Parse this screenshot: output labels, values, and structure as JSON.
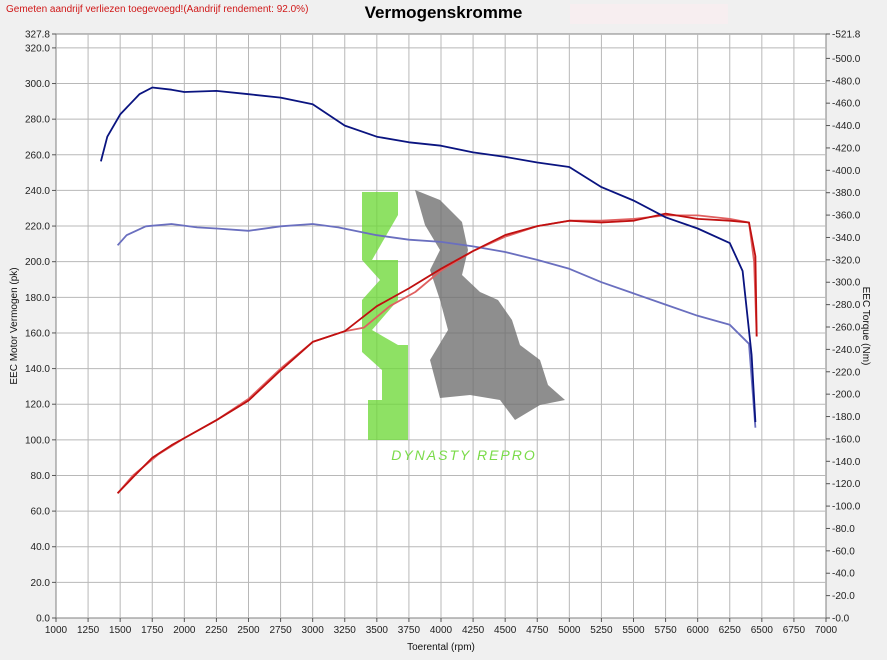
{
  "header": {
    "note": "Gemeten aandrijf verliezen toegevoegd!(Aandrijf rendement: 92.0%)",
    "title": "Vermogenskromme"
  },
  "watermark": {
    "text": "DYNASTY REPRO",
    "logo": "DR",
    "color_green": "#6fd83a",
    "color_gray": "#6e6e6e"
  },
  "colors": {
    "power_stock": "#e06060",
    "torque_stock": "#6a6fbf",
    "power_tuned": "#c01010",
    "torque_tuned": "#0a1480",
    "grid": "#b8b8b8"
  },
  "chart_data": {
    "type": "line",
    "title": "Vermogenskromme",
    "xlabel": "Toerental (rpm)",
    "ylabel_left": "EEC Motor Vermogen (pk)",
    "ylabel_right": "EEC Torque (Nm)",
    "xlim": [
      1000,
      7000
    ],
    "ylim_left": [
      0,
      327.8
    ],
    "ylim_right": [
      0,
      521.8
    ],
    "x_ticks": [
      "1000",
      "1250",
      "1500",
      "1750",
      "2000",
      "2250",
      "2500",
      "2750",
      "3000",
      "3250",
      "3500",
      "3750",
      "4000",
      "4250",
      "4500",
      "4750",
      "5000",
      "5250",
      "5500",
      "5750",
      "6000",
      "6250",
      "6500",
      "6750",
      "7000"
    ],
    "y_left_ticks": [
      "0.0",
      "20.0",
      "40.0",
      "60.0",
      "80.0",
      "100.0",
      "120.0",
      "140.0",
      "160.0",
      "180.0",
      "200.0",
      "220.0",
      "240.0",
      "260.0",
      "280.0",
      "300.0",
      "320.0",
      "327.8"
    ],
    "y_right_ticks": [
      "0.0",
      "20.0",
      "40.0",
      "60.0",
      "80.0",
      "100.0",
      "120.0",
      "140.0",
      "160.0",
      "180.0",
      "200.0",
      "220.0",
      "240.0",
      "260.0",
      "280.0",
      "300.0",
      "320.0",
      "340.0",
      "360.0",
      "380.0",
      "400.0",
      "420.0",
      "440.0",
      "460.0",
      "480.0",
      "500.0",
      "521.8"
    ],
    "grid": true,
    "series": [
      {
        "axis": "left",
        "color": "#e06060",
        "x": [
          1480,
          1600,
          1800,
          2000,
          2250,
          2500,
          2750,
          3000,
          3250,
          3400,
          3600,
          3800,
          4000,
          4250,
          4500,
          4750,
          5000,
          5250,
          5500,
          5750,
          6000,
          6250,
          6400,
          6440,
          6460
        ],
        "y": [
          70,
          80,
          92,
          101,
          111,
          123,
          140,
          155,
          161,
          163,
          175,
          183,
          195,
          206,
          214,
          220,
          223,
          223,
          224,
          226,
          226,
          224,
          222,
          200,
          158
        ]
      },
      {
        "axis": "right",
        "color": "#6a6fbf",
        "x": [
          1480,
          1550,
          1700,
          1900,
          2100,
          2250,
          2500,
          2750,
          3000,
          3200,
          3500,
          3750,
          4000,
          4250,
          4500,
          4750,
          5000,
          5250,
          5500,
          5750,
          6000,
          6250,
          6400,
          6450
        ],
        "y": [
          333,
          342,
          350,
          352,
          349,
          348,
          346,
          350,
          352,
          349,
          342,
          338,
          336,
          332,
          327,
          320,
          312,
          300,
          290,
          280,
          270,
          262,
          245,
          170
        ]
      },
      {
        "axis": "left",
        "color": "#c01010",
        "x": [
          1480,
          1600,
          1750,
          1900,
          2000,
          2250,
          2500,
          2750,
          3000,
          3250,
          3500,
          3750,
          4000,
          4250,
          4500,
          4750,
          5000,
          5250,
          5500,
          5750,
          6000,
          6250,
          6400,
          6450,
          6460
        ],
        "y": [
          70,
          79,
          90,
          97,
          101,
          111,
          122,
          139,
          155,
          161,
          175,
          185,
          196,
          206,
          215,
          220,
          223,
          222,
          223,
          227,
          224,
          223,
          222,
          203,
          158
        ]
      },
      {
        "axis": "right",
        "color": "#0a1480",
        "x": [
          1350,
          1400,
          1500,
          1650,
          1750,
          1900,
          2000,
          2250,
          2500,
          2750,
          3000,
          3250,
          3500,
          3750,
          4000,
          4250,
          4500,
          4750,
          5000,
          5250,
          5500,
          5750,
          6000,
          6250,
          6350,
          6420,
          6450
        ],
        "y": [
          408,
          430,
          450,
          468,
          474,
          472,
          470,
          471,
          468,
          465,
          459,
          440,
          430,
          425,
          422,
          416,
          412,
          407,
          403,
          385,
          373,
          358,
          348,
          335,
          310,
          235,
          175
        ]
      }
    ]
  }
}
